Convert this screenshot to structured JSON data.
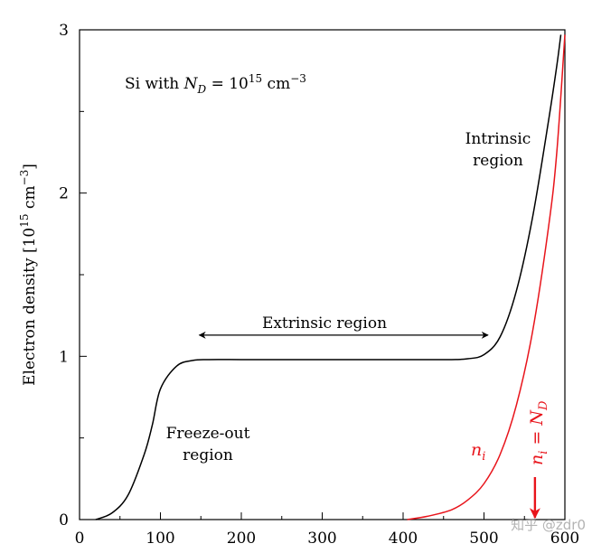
{
  "chart_data": {
    "type": "line",
    "title": "",
    "xlabel": "",
    "ylabel": "Electron density [10^15 cm^-3]",
    "ylabel_parts": {
      "main": "Electron density [10",
      "exp1": "15",
      "mid": " cm",
      "exp2": "−3",
      "end": "]"
    },
    "xlim": [
      0,
      600
    ],
    "ylim": [
      0,
      3
    ],
    "x_ticks": [
      0,
      100,
      200,
      300,
      400,
      500,
      600
    ],
    "y_ticks": [
      0,
      1,
      2,
      3
    ],
    "y_minor_ticks": [
      0.5,
      1.5,
      2.5
    ],
    "x_minor_ticks": [
      50,
      150,
      250,
      350,
      450,
      550
    ],
    "grid": false,
    "series": [
      {
        "color": "#000000",
        "x": [
          20,
          40,
          60,
          80,
          90,
          100,
          120,
          140,
          160,
          200,
          300,
          400,
          460,
          480,
          500,
          520,
          540,
          560,
          580,
          590,
          595
        ],
        "y": [
          0.0,
          0.04,
          0.15,
          0.4,
          0.58,
          0.8,
          0.94,
          0.975,
          0.98,
          0.98,
          0.98,
          0.98,
          0.98,
          0.985,
          1.01,
          1.12,
          1.4,
          1.85,
          2.45,
          2.78,
          2.97
        ]
      },
      {
        "color": "#e8141b",
        "x": [
          405,
          430,
          460,
          480,
          500,
          520,
          540,
          560,
          580,
          590,
          600
        ],
        "y": [
          0.0,
          0.02,
          0.06,
          0.12,
          0.22,
          0.4,
          0.7,
          1.15,
          1.8,
          2.25,
          2.97
        ]
      }
    ],
    "annotations": {
      "material": {
        "prefix": "Si with ",
        "var": "N",
        "sub": "D",
        "eq": " = 10",
        "exp": "15",
        "unit": " cm",
        "unit_exp": "−3"
      },
      "intrinsic_line1": "Intrinsic",
      "intrinsic_line2": "region",
      "extrinsic": "Extrinsic region",
      "extrinsic_arrow": {
        "from": 148,
        "to": 505,
        "y": 1.13
      },
      "freezeout_line1": "Freeze-out",
      "freezeout_line2": "region",
      "ni_label": {
        "var": "n",
        "sub": "i"
      },
      "ni_eq_nd": {
        "var1": "n",
        "sub1": "i",
        "eq": " = ",
        "var2": "N",
        "sub2": "D"
      },
      "red_arrow_x": 563
    },
    "watermark": "知乎 @zdr0"
  },
  "colors": {
    "axis": "#000000",
    "black_curve": "#000000",
    "red": "#e8141b"
  }
}
